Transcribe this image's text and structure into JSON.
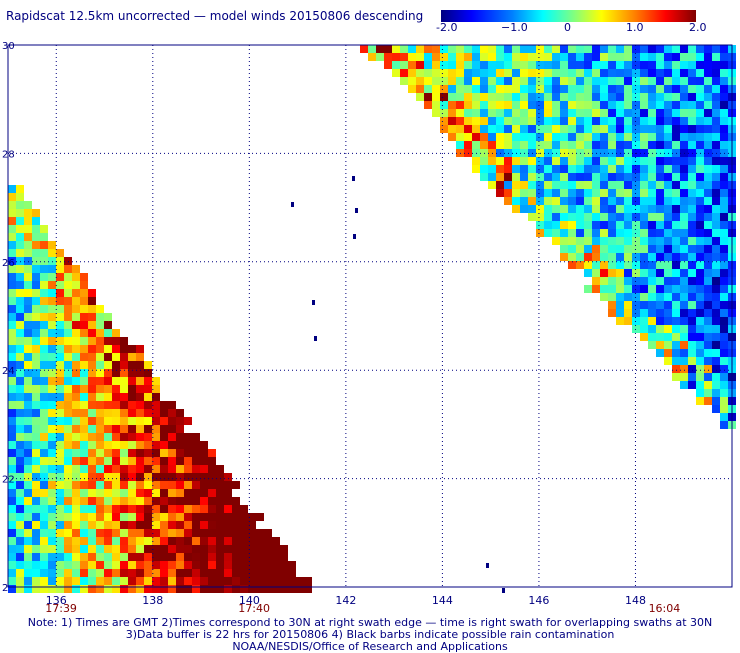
{
  "title": "Rapidscat 12.5km uncorrected — model winds 20150806 descending",
  "colorbar": {
    "labels": [
      "-2.0",
      "−1.0",
      "0",
      "1.0",
      "2.0"
    ],
    "stops": [
      "#000080",
      "#0000ff",
      "#0080ff",
      "#00ffff",
      "#80ff80",
      "#ffff00",
      "#ff8000",
      "#ff0000",
      "#800000"
    ]
  },
  "map": {
    "lon_range": [
      135,
      150
    ],
    "lat_range": [
      20,
      30
    ],
    "lon_labels": [
      "136",
      "138",
      "140",
      "142",
      "144",
      "146",
      "148"
    ],
    "lat_labels": [
      "30",
      "28",
      "26",
      "24",
      "22",
      "2"
    ],
    "times": [
      "17:39",
      "17:40",
      "16:04"
    ],
    "grid": "dotted",
    "time_color": "#800000",
    "label_color": "#000080"
  },
  "notes": {
    "line1": "Note: 1) Times are GMT 2)Times correspond to 30N at right swath edge — time is right swath for overlapping swaths at 30N",
    "line2": "3)Data buffer is 22 hrs for 20150806 4) Black barbs indicate possible rain contamination",
    "line3": "NOAA/NESDIS/Office of Research and Applications"
  }
}
